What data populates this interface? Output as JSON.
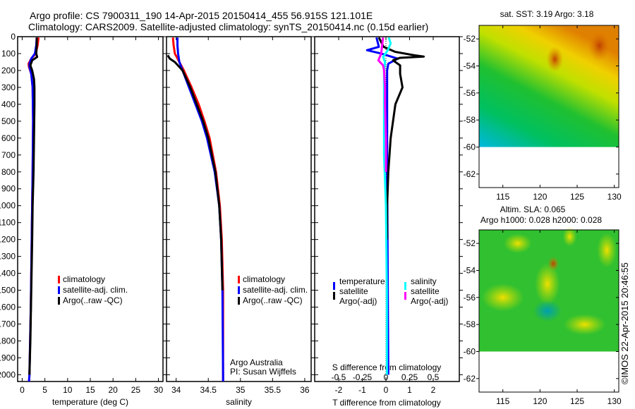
{
  "title": {
    "line1": "Argo profile: CS 7900311_190 14-Apr-2015 20150414_455 56.915S 121.101E",
    "line2": "Climatology: CARS2009. Satellite-adjusted climatology: synTS_20150414.nc (0.15d earlier)"
  },
  "colors": {
    "climatology": "#ff0000",
    "satellite": "#0000ff",
    "argo": "#000000",
    "sal_satellite": "#00ffff",
    "sal_argo": "#ff00ff"
  },
  "chart_data": [
    {
      "type": "line",
      "name": "temperature-profile",
      "xlabel": "temperature (deg C)",
      "xlim": [
        -1,
        31
      ],
      "ylim": [
        2040,
        0
      ],
      "xticks": [
        "0",
        "5",
        "10",
        "15",
        "20",
        "25",
        "30"
      ],
      "yticks": [
        "0",
        "100",
        "200",
        "300",
        "400",
        "500",
        "600",
        "700",
        "800",
        "900",
        "1000",
        "1100",
        "1200",
        "1300",
        "1400",
        "1500",
        "1600",
        "1700",
        "1800",
        "1900",
        "2000"
      ],
      "legend": [
        "climatology",
        "satellite-adj. clim.",
        "Argo(..raw -QC)"
      ],
      "series": [
        {
          "name": "climatology",
          "color": "#ff0000",
          "depth": [
            5,
            50,
            100,
            130,
            160,
            180,
            220,
            300,
            500,
            800,
            1200,
            1600,
            2000,
            2040
          ],
          "values": [
            3.6,
            3.4,
            3.0,
            2.0,
            1.4,
            1.5,
            2.0,
            2.3,
            2.4,
            2.3,
            2.1,
            1.9,
            1.6,
            1.5
          ]
        },
        {
          "name": "satellite-adj. clim.",
          "color": "#0000ff",
          "depth": [
            5,
            50,
            100,
            130,
            160,
            180,
            220,
            300,
            500,
            800,
            1200,
            1600,
            2000,
            2040
          ],
          "values": [
            3.2,
            3.1,
            2.8,
            2.0,
            1.6,
            1.6,
            2.0,
            2.3,
            2.4,
            2.3,
            2.1,
            1.9,
            1.6,
            1.5
          ]
        },
        {
          "name": "Argo(..raw -QC)",
          "color": "#000000",
          "depth": [
            5,
            50,
            100,
            120,
            140,
            170,
            200,
            250,
            300,
            400,
            600,
            800,
            1000,
            1200,
            1500,
            1800,
            2000
          ],
          "values": [
            3.2,
            3.2,
            3.1,
            3.3,
            2.2,
            1.8,
            2.2,
            2.6,
            2.7,
            2.7,
            2.6,
            2.5,
            2.3,
            2.2,
            2.0,
            1.8,
            1.6
          ]
        }
      ]
    },
    {
      "type": "line",
      "name": "salinity-profile",
      "xlabel": "salinity",
      "xlim": [
        33.85,
        36.1
      ],
      "ylim": [
        2040,
        0
      ],
      "xticks": [
        "34",
        "34.5",
        "35",
        "35.5",
        "36"
      ],
      "legend": [
        "climatology",
        "satellite-adj. clim.",
        "Argo(..raw -QC)"
      ],
      "annotation": [
        "Argo Australia",
        "PI: Susan Wijffels"
      ],
      "series": [
        {
          "name": "climatology",
          "color": "#ff0000",
          "depth": [
            5,
            50,
            100,
            150,
            200,
            300,
            400,
            500,
            600,
            800,
            1000,
            1200,
            1500,
            2000,
            2040
          ],
          "values": [
            33.95,
            33.96,
            33.98,
            34.05,
            34.12,
            34.24,
            34.35,
            34.44,
            34.52,
            34.62,
            34.68,
            34.71,
            34.73,
            34.73,
            34.73
          ]
        },
        {
          "name": "satellite-adj. clim.",
          "color": "#0000ff",
          "depth": [
            5,
            50,
            100,
            150,
            200,
            300,
            400,
            500,
            600,
            800,
            1000,
            1200,
            1500,
            2000,
            2040
          ],
          "values": [
            34.02,
            34.02,
            34.03,
            34.05,
            34.1,
            34.2,
            34.3,
            34.4,
            34.48,
            34.6,
            34.67,
            34.7,
            34.72,
            34.73,
            34.73
          ]
        },
        {
          "name": "Argo(..raw -QC)",
          "color": "#000000",
          "depth": [
            110,
            130,
            150,
            200,
            300,
            400,
            500,
            600,
            800,
            1000,
            1200,
            1500
          ],
          "values": [
            33.87,
            33.9,
            33.98,
            34.1,
            34.22,
            34.32,
            34.42,
            34.5,
            34.61,
            34.67,
            34.7,
            34.72
          ]
        }
      ]
    },
    {
      "type": "line",
      "name": "difference-profile",
      "xlabel": "T difference from climatology",
      "x2label": "S difference from climatology",
      "xlim": [
        -2.9,
        2.9
      ],
      "ylim": [
        2040,
        0
      ],
      "xticks": [
        "-2",
        "-1",
        "0",
        "1",
        "2"
      ],
      "x2ticks": [
        "-0.5",
        "-0.25",
        "0",
        "0.25",
        "0.5"
      ],
      "legend_temperature": {
        "title": "temperature",
        "items": [
          "satellite",
          "Argo(-adj)"
        ]
      },
      "legend_salinity": {
        "title": "salinity",
        "items": [
          "satellite",
          "Argo(-adj)"
        ]
      },
      "series": [
        {
          "name": "temperature satellite",
          "axis": "T",
          "color": "#0000ff",
          "depth": [
            5,
            60,
            80,
            100,
            130,
            160,
            200,
            400,
            800,
            2000
          ],
          "values": [
            -0.4,
            -0.3,
            -0.8,
            -0.2,
            0.5,
            0.1,
            0.05,
            0.05,
            0.05,
            0.1
          ]
        },
        {
          "name": "temperature Argo(-adj)",
          "axis": "T",
          "color": "#000000",
          "depth": [
            5,
            60,
            90,
            110,
            118,
            125,
            140,
            170,
            220,
            300,
            400,
            500,
            600,
            800,
            1000,
            1200
          ],
          "values": [
            -0.3,
            -0.1,
            0.4,
            1.2,
            1.6,
            0.6,
            0.3,
            0.6,
            0.6,
            0.7,
            0.4,
            0.3,
            0.2,
            0.1,
            0.05,
            0.05
          ]
        },
        {
          "name": "salinity satellite",
          "axis": "S",
          "color": "#00ffff",
          "depth": [
            5,
            40,
            80,
            120,
            150,
            200,
            400,
            700,
            1000,
            1500,
            2000
          ],
          "values": [
            0.03,
            0.05,
            0.02,
            -0.03,
            -0.01,
            -0.02,
            -0.02,
            -0.02,
            0.0,
            0.01,
            0.01
          ]
        },
        {
          "name": "salinity Argo(-adj)",
          "axis": "S",
          "color": "#ff00ff",
          "depth": [
            5,
            50,
            100,
            140,
            170,
            200,
            300,
            400,
            600,
            800
          ],
          "values": [
            -0.03,
            -0.04,
            -0.05,
            -0.08,
            -0.03,
            -0.02,
            -0.01,
            -0.01,
            0.0,
            0.0
          ]
        }
      ]
    },
    {
      "type": "heatmap",
      "name": "sst-map",
      "title": "sat. SST: 3.19 Argo: 3.18",
      "xlim": [
        111.8,
        130.6
      ],
      "ylim": [
        -63,
        -51
      ],
      "xticks": [
        "115",
        "120",
        "125",
        "130"
      ],
      "yticks": [
        "-52",
        "-54",
        "-56",
        "-58",
        "-60",
        "-62"
      ]
    },
    {
      "type": "heatmap",
      "name": "sla-map",
      "title": "Altim. SLA: 0.065",
      "subtitle": "Argo h1000: 0.028 h2000: 0.028",
      "xlim": [
        111.8,
        130.6
      ],
      "ylim": [
        -63,
        -51
      ],
      "xticks": [
        "115",
        "120",
        "125",
        "130"
      ],
      "yticks": [
        "-52",
        "-54",
        "-56",
        "-58",
        "-60",
        "-62"
      ]
    }
  ],
  "credit": "©IMOS 22-Apr-2015 20:46:55"
}
